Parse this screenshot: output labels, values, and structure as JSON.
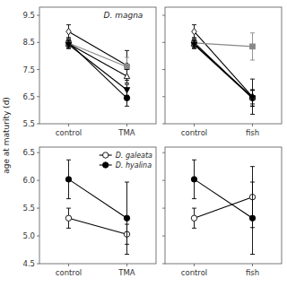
{
  "chart_data": [
    {
      "type": "line",
      "title": "D. magna",
      "ylabel": "age at maturity (d)",
      "categories": [
        "control",
        "TMA"
      ],
      "ylim": [
        5.5,
        9.8
      ],
      "yticks": [
        5.5,
        6.5,
        7.5,
        8.5,
        9.5
      ],
      "grid": false,
      "series": [
        {
          "marker": "diamond-open",
          "color": "black",
          "values": [
            8.9,
            7.65
          ],
          "errors": [
            0.25,
            0.55
          ]
        },
        {
          "marker": "circle",
          "color": "black",
          "values": [
            8.5,
            6.45
          ],
          "errors": [
            0.18,
            0.3
          ]
        },
        {
          "marker": "square",
          "color": "#888888",
          "values": [
            8.48,
            7.6
          ],
          "errors": [
            0.15,
            0.35
          ]
        },
        {
          "marker": "triangle-up-open",
          "color": "black",
          "values": [
            8.45,
            7.25
          ],
          "errors": [
            0.15,
            0.25
          ]
        },
        {
          "marker": "triangle-down",
          "color": "black",
          "values": [
            8.42,
            6.75
          ],
          "errors": [
            0.15,
            0.2
          ]
        }
      ]
    },
    {
      "type": "line",
      "categories": [
        "control",
        "fish"
      ],
      "ylim": [
        5.5,
        9.8
      ],
      "yticks": [
        5.5,
        6.5,
        7.5,
        8.5,
        9.5
      ],
      "grid": false,
      "tick_labels": "x",
      "series": [
        {
          "marker": "diamond-open",
          "color": "black",
          "values": [
            8.9,
            6.5
          ],
          "errors": [
            0.25,
            0.65
          ]
        },
        {
          "marker": "circle",
          "color": "black",
          "values": [
            8.5,
            6.45
          ],
          "errors": [
            0.18,
            0.3
          ]
        },
        {
          "marker": "square",
          "color": "#888888",
          "values": [
            8.48,
            8.35
          ],
          "errors": [
            0.15,
            0.5
          ]
        },
        {
          "marker": "triangle-up-open",
          "color": "black",
          "values": [
            8.45,
            6.48
          ],
          "errors": [
            0.15,
            0.25
          ]
        },
        {
          "marker": "triangle-down",
          "color": "black",
          "values": [
            8.42,
            6.45
          ],
          "errors": [
            0.15,
            0.3
          ]
        }
      ]
    },
    {
      "type": "line",
      "categories": [
        "control",
        "TMA"
      ],
      "ylim": [
        4.5,
        6.6
      ],
      "yticks": [
        4.5,
        {
          "value": 5,
          "label": "5.0"
        },
        5.5,
        {
          "value": 6,
          "label": "6.0"
        },
        6.5
      ],
      "grid": false,
      "legend": "upper right",
      "series": [
        {
          "name": "D. galeata",
          "marker": "circle-open",
          "color": "black",
          "values": [
            5.32,
            5.03
          ],
          "errors": [
            0.18,
            0.18
          ]
        },
        {
          "name": "D. hyalina",
          "marker": "circle",
          "color": "black",
          "values": [
            6.02,
            5.32
          ],
          "errors": [
            0.35,
            0.65
          ]
        }
      ]
    },
    {
      "type": "line",
      "categories": [
        "control",
        "fish"
      ],
      "ylim": [
        4.5,
        6.6
      ],
      "yticks": [
        4.5,
        {
          "value": 5,
          "label": "5.0"
        },
        5.5,
        {
          "value": 6,
          "label": "6.0"
        },
        6.5
      ],
      "grid": false,
      "tick_labels": "x",
      "series": [
        {
          "marker": "circle-open",
          "color": "black",
          "values": [
            5.32,
            5.7
          ],
          "errors": [
            0.18,
            0.55
          ]
        },
        {
          "marker": "circle",
          "color": "black",
          "values": [
            6.02,
            5.32
          ],
          "errors": [
            0.35,
            0.65
          ]
        }
      ]
    }
  ]
}
